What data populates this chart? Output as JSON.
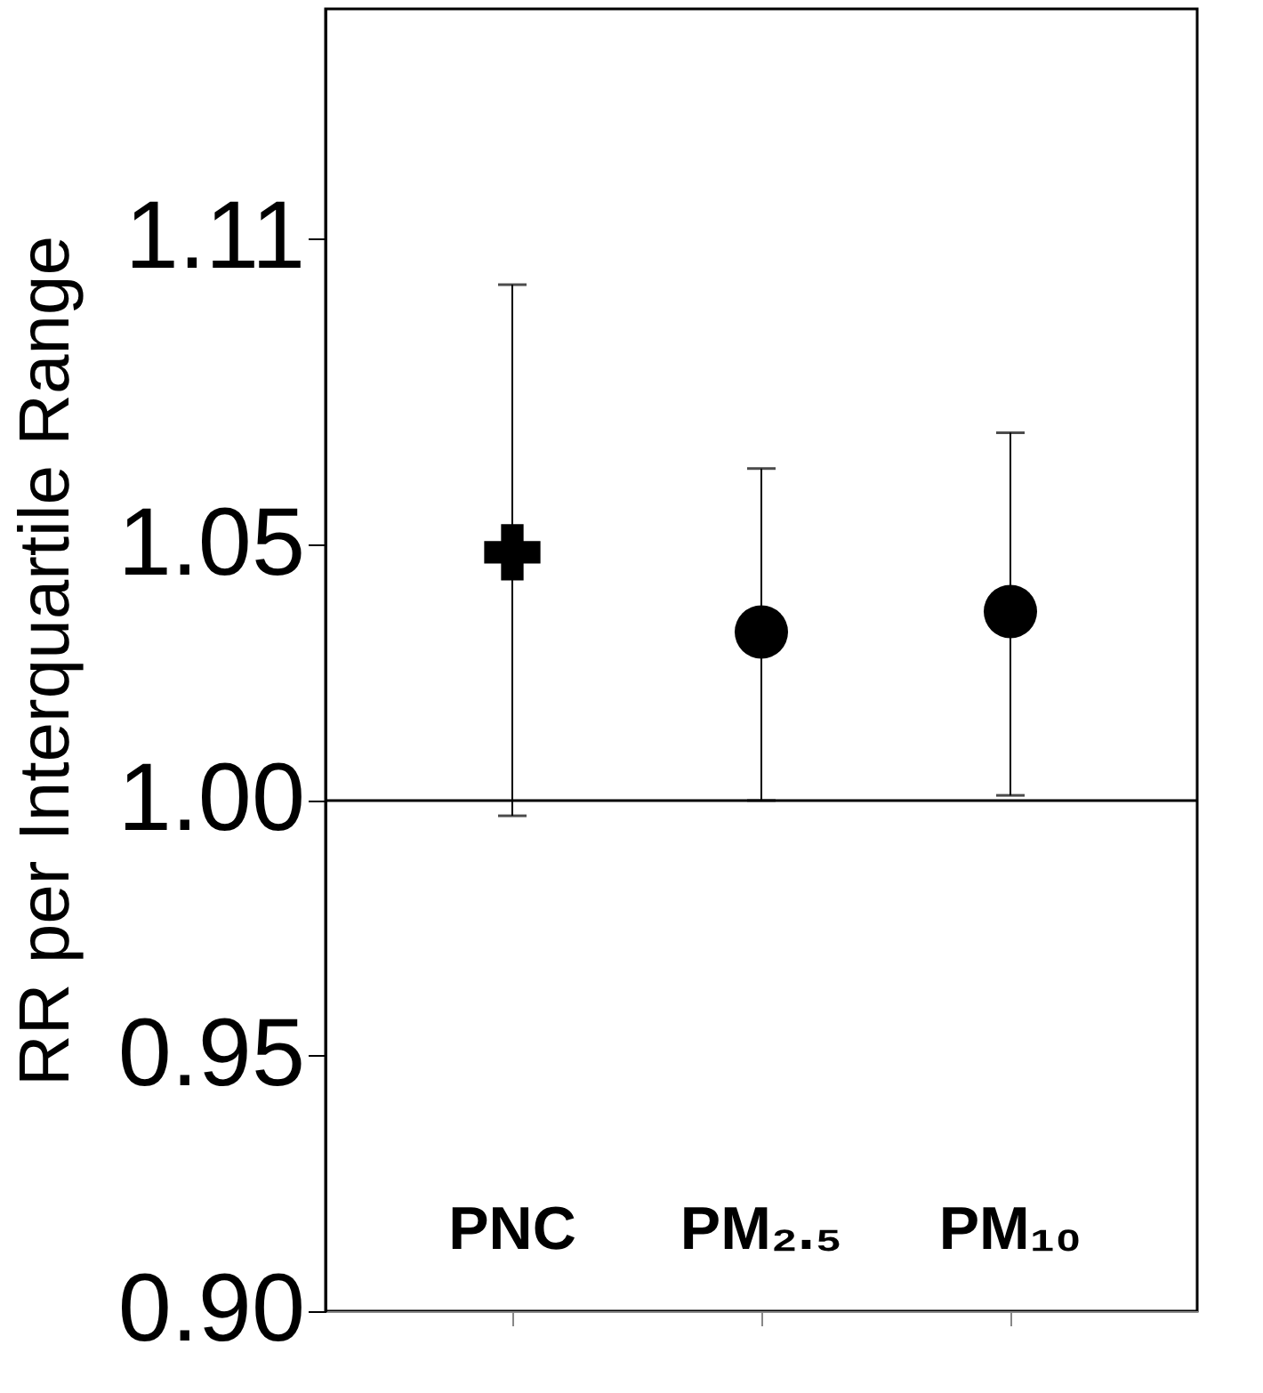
{
  "chart_data": {
    "type": "scatter",
    "ylabel": "RR per Interquartile Range",
    "categories": [
      "PNC",
      "PM₂.₅",
      "PM₁₀"
    ],
    "series": [
      {
        "color": "#000000",
        "marker": "cross",
        "values": [
          1.0486,
          null,
          null
        ],
        "errors": [
          [
            0.997,
            1.101
          ],
          null,
          null
        ]
      },
      {
        "color": "#000000",
        "marker": "circle",
        "values": [
          null,
          1.033,
          1.037
        ],
        "errors": [
          null,
          [
            1.0,
            1.065
          ],
          [
            1.001,
            1.072
          ]
        ]
      }
    ],
    "ylim": [
      0.9,
      1.155
    ],
    "yticks": [
      {
        "value": 0.9,
        "label": "0.90"
      },
      0.95,
      {
        "value": 1.0,
        "label": "1.00"
      },
      1.05,
      1.11
    ],
    "ref_lines": [
      {
        "axis": "y",
        "value": 1.0,
        "color": "#000000"
      }
    ],
    "grid": false
  }
}
